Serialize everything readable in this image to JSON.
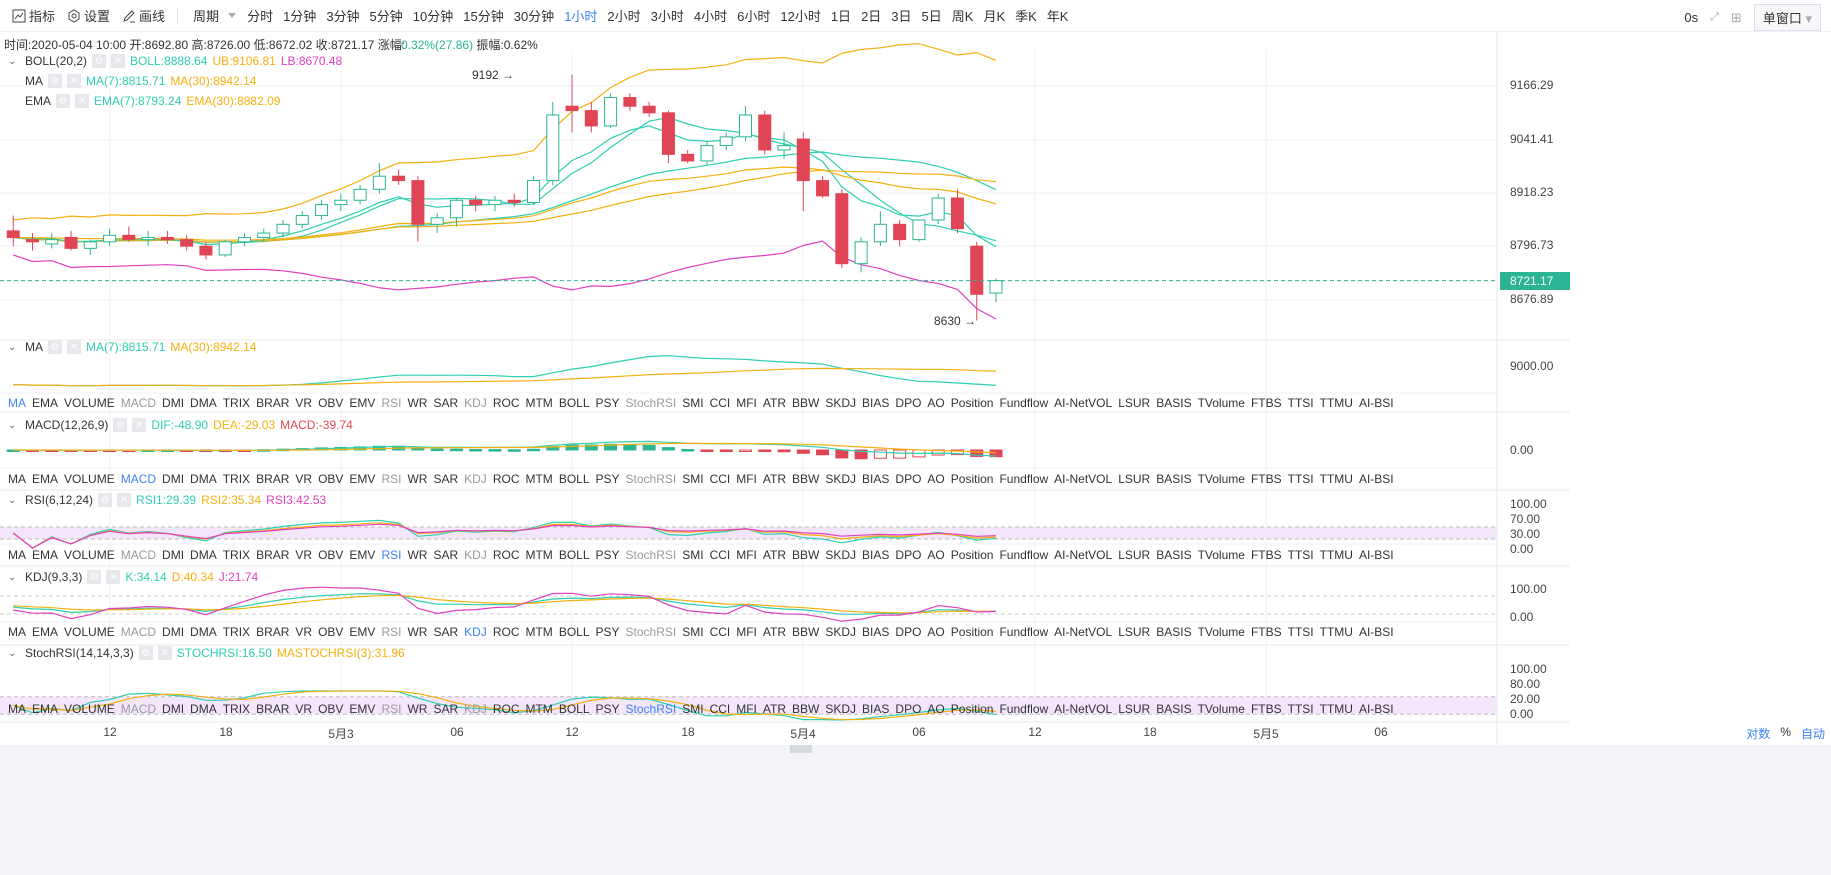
{
  "toolbar": {
    "indicators": "指标",
    "settings": "设置",
    "draw": "画线",
    "period_label": "周期",
    "periods": [
      "分时",
      "1分钟",
      "3分钟",
      "5分钟",
      "10分钟",
      "15分钟",
      "30分钟",
      "1小时",
      "2小时",
      "3小时",
      "4小时",
      "6小时",
      "12小时",
      "1日",
      "2日",
      "3日",
      "5日",
      "周K",
      "月K",
      "季K",
      "年K"
    ],
    "active_period": "1小时",
    "timer": "0s",
    "window_mode": "单窗口"
  },
  "info": {
    "time": "时间:2020-05-04 10:00",
    "open": "开:8692.80",
    "high": "高:8726.00",
    "low": "低:8672.02",
    "close": "收:8721.17",
    "change_label": "涨幅:",
    "change": "0.32%(27.86)",
    "amplitude": "振幅:0.62%"
  },
  "legends": {
    "boll": {
      "name": "BOLL(20,2)",
      "v1": "BOLL:8888.64",
      "v2": "UB:9106.81",
      "v3": "LB:8670.48"
    },
    "ma": {
      "name": "MA",
      "v1": "MA(7):8815.71",
      "v2": "MA(30):8942.14"
    },
    "ema": {
      "name": "EMA",
      "v1": "EMA(7):8793.24",
      "v2": "EMA(30):8882.09"
    },
    "vol_ma": {
      "name": "MA",
      "v1": "MA(7):8815.71",
      "v2": "MA(30):8942.14"
    },
    "macd": {
      "name": "MACD(12,26,9)",
      "v1": "DIF:-48.90",
      "v2": "DEA:-29.03",
      "v3": "MACD:-39.74"
    },
    "rsi": {
      "name": "RSI(6,12,24)",
      "v1": "RSI1:29.39",
      "v2": "RSI2:35.34",
      "v3": "RSI3:42.53"
    },
    "kdj": {
      "name": "KDJ(9,3,3)",
      "v1": "K:34.14",
      "v2": "D:40.34",
      "v3": "J:21.74"
    },
    "stoch": {
      "name": "StochRSI(14,14,3,3)",
      "v1": "STOCHRSI:16.50",
      "v2": "MASTOCHRSI(3):31.96"
    }
  },
  "indicator_tabs": [
    "MA",
    "EMA",
    "VOLUME",
    "MACD",
    "DMI",
    "DMA",
    "TRIX",
    "BRAR",
    "VR",
    "OBV",
    "EMV",
    "RSI",
    "WR",
    "SAR",
    "KDJ",
    "ROC",
    "MTM",
    "BOLL",
    "PSY",
    "StochRSI",
    "SMI",
    "CCI",
    "MFI",
    "ATR",
    "BBW",
    "SKDJ",
    "BIAS",
    "DPO",
    "AO",
    "Position",
    "Fundflow",
    "AI-NetVOL",
    "LSUR",
    "BASIS",
    "TVolume",
    "FTBS",
    "TTSI",
    "TTMU",
    "AI-BSI"
  ],
  "tab_rows": [
    {
      "active": "MA"
    },
    {
      "active": "MACD"
    },
    {
      "active": "RSI"
    },
    {
      "active": "KDJ"
    },
    {
      "active": "StochRSI"
    }
  ],
  "tab_gray": [
    "MACD",
    "RSI",
    "KDJ",
    "StochRSI"
  ],
  "price_axis": [
    "9166.29",
    "9041.41",
    "8918.23",
    "8796.73",
    "8676.89"
  ],
  "current_price": "8721.17",
  "vol_axis": [
    "9000.00"
  ],
  "macd_axis": [
    "0.00"
  ],
  "rsi_axis": [
    "100.00",
    "70.00",
    "30.00",
    "0.00"
  ],
  "kdj_axis": [
    "100.00",
    "0.00"
  ],
  "stoch_axis": [
    "100.00",
    "80.00",
    "20.00",
    "0.00"
  ],
  "time_axis": [
    "12",
    "18",
    "5月3",
    "06",
    "12",
    "18",
    "5月4",
    "06",
    "12",
    "18",
    "5月5",
    "06"
  ],
  "bottom_controls": {
    "log": "对数",
    "percent": "%",
    "auto": "自动"
  },
  "colors": {
    "up": "#2bb592",
    "down": "#e04555",
    "boll": "#2ecfb0",
    "ub": "#f5b010",
    "lb": "#e040c0",
    "ma7": "#2ecfb0",
    "ma30": "#f5b010"
  },
  "chart_data": {
    "type": "candlestick",
    "interval": "1h",
    "first": "2020-05-02 07:00",
    "last": "2020-05-04 10:00",
    "annotations": {
      "high": "9192",
      "low": "8630"
    },
    "ohlc": [
      [
        8835,
        8870,
        8800,
        8820
      ],
      [
        8815,
        8830,
        8790,
        8810
      ],
      [
        8805,
        8830,
        8795,
        8815
      ],
      [
        8820,
        8835,
        8790,
        8795
      ],
      [
        8795,
        8815,
        8780,
        8810
      ],
      [
        8810,
        8840,
        8800,
        8825
      ],
      [
        8825,
        8845,
        8810,
        8815
      ],
      [
        8815,
        8835,
        8800,
        8820
      ],
      [
        8820,
        8835,
        8805,
        8815
      ],
      [
        8815,
        8825,
        8790,
        8800
      ],
      [
        8800,
        8810,
        8770,
        8780
      ],
      [
        8780,
        8815,
        8775,
        8810
      ],
      [
        8810,
        8830,
        8800,
        8820
      ],
      [
        8820,
        8840,
        8810,
        8830
      ],
      [
        8830,
        8860,
        8820,
        8850
      ],
      [
        8850,
        8880,
        8840,
        8870
      ],
      [
        8870,
        8905,
        8860,
        8895
      ],
      [
        8895,
        8920,
        8880,
        8905
      ],
      [
        8905,
        8940,
        8895,
        8930
      ],
      [
        8930,
        8990,
        8920,
        8960
      ],
      [
        8960,
        8975,
        8940,
        8950
      ],
      [
        8950,
        8960,
        8810,
        8850
      ],
      [
        8850,
        8875,
        8830,
        8865
      ],
      [
        8865,
        8910,
        8845,
        8905
      ],
      [
        8905,
        8915,
        8880,
        8895
      ],
      [
        8895,
        8915,
        8880,
        8905
      ],
      [
        8905,
        8920,
        8890,
        8900
      ],
      [
        8900,
        8960,
        8895,
        8950
      ],
      [
        8950,
        9130,
        8940,
        9100
      ],
      [
        9120,
        9192,
        9060,
        9110
      ],
      [
        9110,
        9130,
        9060,
        9075
      ],
      [
        9075,
        9150,
        9070,
        9140
      ],
      [
        9140,
        9150,
        9110,
        9120
      ],
      [
        9120,
        9130,
        9095,
        9105
      ],
      [
        9105,
        9110,
        8990,
        9010
      ],
      [
        9010,
        9020,
        8990,
        8995
      ],
      [
        8995,
        9040,
        8985,
        9030
      ],
      [
        9030,
        9060,
        9020,
        9050
      ],
      [
        9050,
        9120,
        9040,
        9100
      ],
      [
        9100,
        9110,
        9010,
        9020
      ],
      [
        9020,
        9060,
        9000,
        9030
      ],
      [
        9045,
        9060,
        8880,
        8950
      ],
      [
        8950,
        8960,
        8910,
        8915
      ],
      [
        8920,
        8930,
        8750,
        8760
      ],
      [
        8760,
        8820,
        8740,
        8810
      ],
      [
        8810,
        8880,
        8800,
        8850
      ],
      [
        8850,
        8860,
        8800,
        8815
      ],
      [
        8815,
        8860,
        8810,
        8860
      ],
      [
        8860,
        8920,
        8850,
        8910
      ],
      [
        8910,
        8930,
        8830,
        8840
      ],
      [
        8800,
        8810,
        8630,
        8690
      ],
      [
        8692.8,
        8726,
        8672.02,
        8721.17
      ]
    ]
  }
}
